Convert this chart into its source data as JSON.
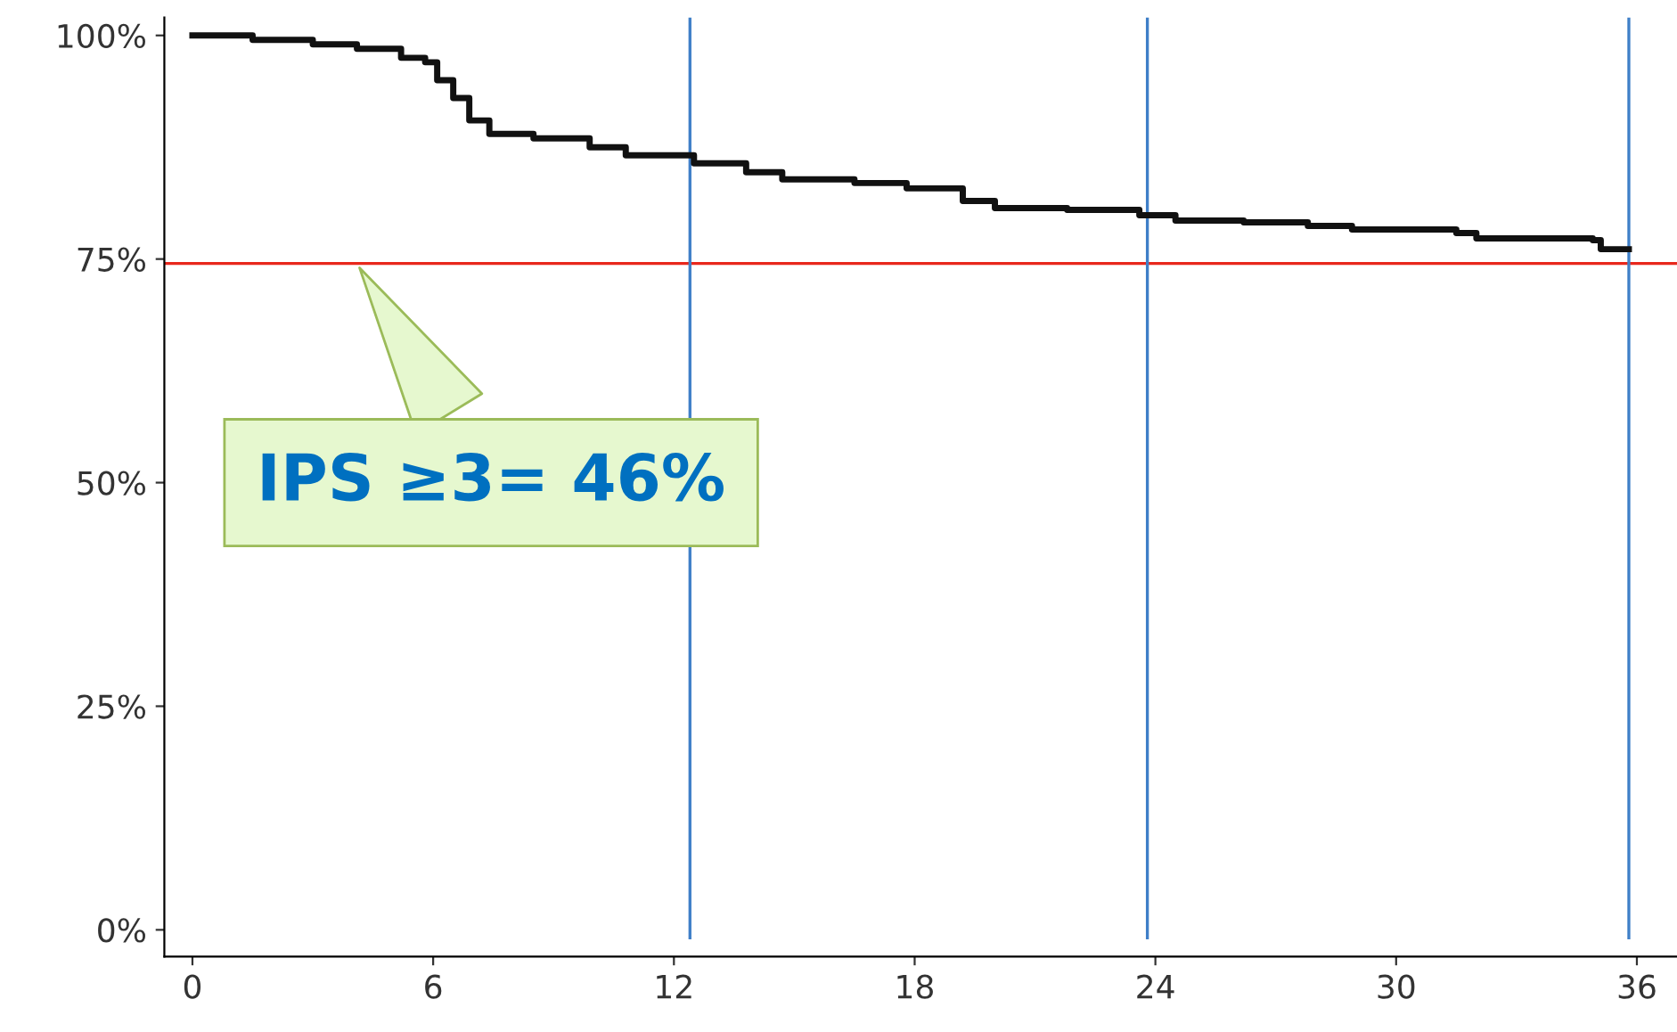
{
  "chart_data": {
    "type": "step",
    "x": [
      0,
      1.5,
      3.0,
      4.1,
      5.2,
      5.8,
      6.1,
      6.5,
      6.9,
      7.4,
      8.5,
      9.9,
      10.8,
      12.5,
      13.8,
      14.7,
      16.5,
      17.8,
      19.2,
      20.0,
      21.8,
      23.6,
      24.5,
      26.2,
      27.8,
      28.9,
      31.5,
      32.0,
      34.9,
      35.1,
      35.8
    ],
    "series": [
      {
        "color": "#111111",
        "values": [
          100,
          99.5,
          99,
          98.5,
          97.5,
          97,
          95,
          93,
          90.5,
          89,
          88.5,
          87.5,
          86.6,
          85.7,
          84.7,
          83.9,
          83.5,
          82.9,
          81.5,
          80.7,
          80.5,
          79.9,
          79.3,
          79.1,
          78.7,
          78.3,
          77.9,
          77.3,
          77.1,
          76.1,
          76.1
        ]
      }
    ],
    "xlim": [
      -0.7,
      37
    ],
    "xticks": [
      0,
      6,
      12,
      18,
      24,
      30,
      36
    ],
    "ylim": [
      -3,
      102
    ],
    "yticks": [
      {
        "value": 0,
        "label": "0%"
      },
      {
        "value": 25,
        "label": "25%"
      },
      {
        "value": 50,
        "label": "50%"
      },
      {
        "value": 75,
        "label": "75%"
      },
      {
        "value": 100,
        "label": "100%"
      }
    ],
    "ref_lines": [
      {
        "axis": "y",
        "value": 74.5,
        "color": "#e8281c"
      },
      {
        "axis": "x",
        "value": 12.4,
        "color": "#3f7fc8"
      },
      {
        "axis": "x",
        "value": 23.8,
        "color": "#3f7fc8"
      },
      {
        "axis": "x",
        "value": 35.8,
        "color": "#3f7fc8"
      }
    ],
    "annotations": [
      {
        "text": "IPS ≥3= 46%",
        "x": 4.1,
        "y": 74.5
      }
    ],
    "grid": false,
    "marker": "none",
    "line_style": "solid"
  }
}
